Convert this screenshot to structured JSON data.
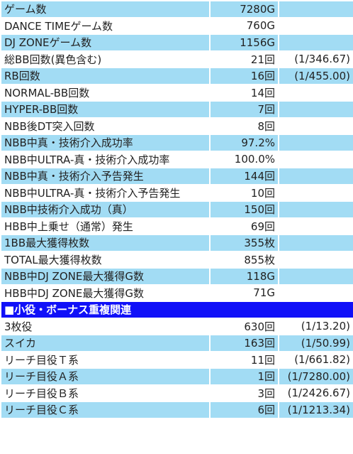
{
  "sections": [
    {
      "rows": [
        [
          "ゲーム数",
          "7280G"
        ],
        [
          "DANCE TIMEゲーム数",
          "760G"
        ],
        [
          "DJ ZONEゲーム数",
          "1156G"
        ],
        [
          "総BB回数(異色含む)",
          "21回",
          "(1/346.67)"
        ],
        [
          "RB回数",
          "16回",
          "(1/455.00)"
        ],
        [
          "NORMAL-BB回数",
          "14回"
        ],
        [
          "HYPER-BB回数",
          "7回"
        ],
        [
          "NBB後DT突入回数",
          "8回"
        ],
        [
          "NBB中真・技術介入成功率",
          "97.2%"
        ],
        [
          "NBB中ULTRA-真・技術介入成功率",
          "100.0%"
        ],
        [
          "NBB中真・技術介入予告発生",
          "144回"
        ],
        [
          "NBB中ULTRA-真・技術介入予告発生",
          "10回"
        ],
        [
          "NBB中技術介入成功（真）",
          "150回"
        ],
        [
          "HBB中上乗せ（通常）発生",
          "69回"
        ],
        [
          "1BB最大獲得枚数",
          "355枚"
        ],
        [
          "TOTAL最大獲得枚数",
          "855枚"
        ],
        [
          "NBB中DJ ZONE最大獲得G数",
          "118G"
        ],
        [
          "HBB中DJ ZONE最大獲得G数",
          "71G"
        ]
      ]
    },
    {
      "title": "■小役・ボーナス重複関連",
      "rows": [
        [
          "3枚役",
          "630回",
          "(1/13.20)"
        ],
        [
          "スイカ",
          "163回",
          "(1/50.99)"
        ],
        [
          "リーチ目役Ｔ系",
          "11回",
          "(1/661.82)"
        ],
        [
          "リーチ目役Ａ系",
          "1回",
          "(1/7280.00)"
        ],
        [
          "リーチ目役Ｂ系",
          "3回",
          "(1/2426.67)"
        ],
        [
          "リーチ目役Ｃ系",
          "6回",
          "(1/1213.34)"
        ]
      ]
    }
  ]
}
